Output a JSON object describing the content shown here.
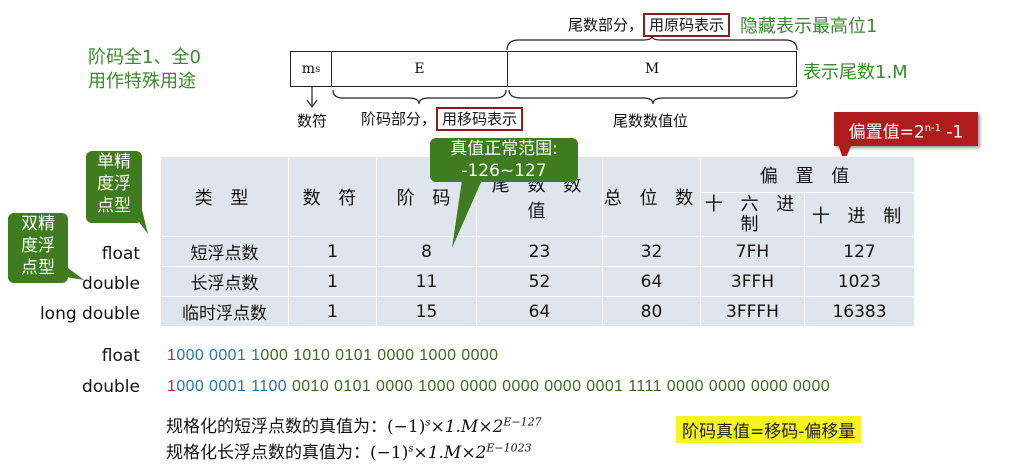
{
  "top_annotations": {
    "exp_special": [
      "阶码全1、全0",
      "用作特殊用途"
    ],
    "mantissa_part": "尾数部分，",
    "mantissa_code": "用原码表示",
    "hidden_bit": "隐藏表示最高位1",
    "mantissa_value": "表示尾数1.M"
  },
  "format_bar": {
    "sign": "m",
    "sign_sub": "s",
    "exponent": "E",
    "mantissa": "M",
    "sign_label": "数符",
    "exp_part": "阶码部分，",
    "exp_code": "用移码表示",
    "mantissa_bits_label": "尾数数值位"
  },
  "callouts": {
    "bias": "偏置值=2",
    "bias_sup": "n-1",
    "bias_tail": " -1",
    "true_range": [
      "真值正常范围:",
      "-126~127"
    ],
    "single": [
      "单精",
      "度浮",
      "点型"
    ],
    "double": [
      "双精",
      "度浮",
      "点型"
    ]
  },
  "table": {
    "headers": [
      "类 型",
      "数 符",
      "阶 码",
      "尾 数 数 值",
      "总 位 数",
      "偏 置 值"
    ],
    "bias_sub": [
      "十 六 进 制",
      "十 进 制"
    ],
    "row_labels": [
      "float",
      "double",
      "long double"
    ],
    "rows": [
      [
        "短浮点数",
        "1",
        "8",
        "23",
        "32",
        "7FH",
        "127"
      ],
      [
        "长浮点数",
        "1",
        "11",
        "52",
        "64",
        "3FFH",
        "1023"
      ],
      [
        "临时浮点数",
        "1",
        "15",
        "64",
        "80",
        "3FFFH",
        "16383"
      ]
    ]
  },
  "bit_examples": {
    "float_label": "float",
    "float_sign": "1",
    "float_exp": "000 0001 1",
    "float_mant": "000 1010 0101 0000 1000 0000",
    "double_label": "double",
    "double_sign": "1",
    "double_exp": "000 0001 1100",
    "double_mant": " 0010 0101 0000 1000 0000 0000 0000 0001 1111 0000 0000 0000 0000"
  },
  "formulas": {
    "short": "规格化的短浮点数的真值为：",
    "short_expr": "(−1)",
    "short_sup": "s",
    "short_mid": "×1.M×2",
    "short_exp": "E−127",
    "long": "规格化长浮点数的真值为：",
    "long_expr": "(−1)",
    "long_sup": "s",
    "long_mid": "×1.M×2",
    "long_exp": "E−1023",
    "note": "阶码真值=移码-偏移量"
  },
  "colors": {
    "green": "#3a8a2e",
    "callout_green": "#3e7c1f",
    "callout_red": "#b01c1c",
    "highlight": "#f6f320"
  }
}
